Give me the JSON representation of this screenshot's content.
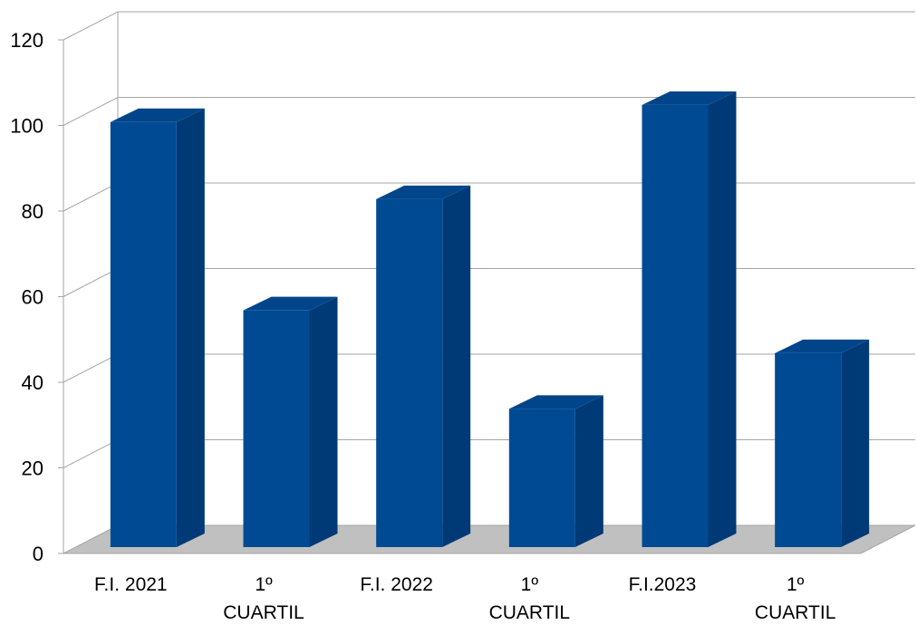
{
  "chart_data": {
    "type": "bar",
    "title": "",
    "xlabel": "",
    "ylabel": "",
    "ylim": [
      0,
      120
    ],
    "yticks": [
      0,
      20,
      40,
      60,
      80,
      100,
      120
    ],
    "grid": true,
    "three_d": true,
    "categories": [
      [
        "F.I. 2021"
      ],
      [
        "1º",
        "CUARTIL"
      ],
      [
        "F.I. 2022"
      ],
      [
        "1º",
        "CUARTIL"
      ],
      [
        "F.I.2023"
      ],
      [
        "1º",
        "CUARTIL"
      ]
    ],
    "series": [
      {
        "values": [
          101,
          57,
          83,
          34,
          105,
          47
        ]
      }
    ],
    "colors": {
      "bar_front": "#004A94",
      "bar_side": "#003A76",
      "bar_top": "#00458A",
      "floor": "#C0C0C0",
      "grid": "#A6A6A6"
    }
  }
}
